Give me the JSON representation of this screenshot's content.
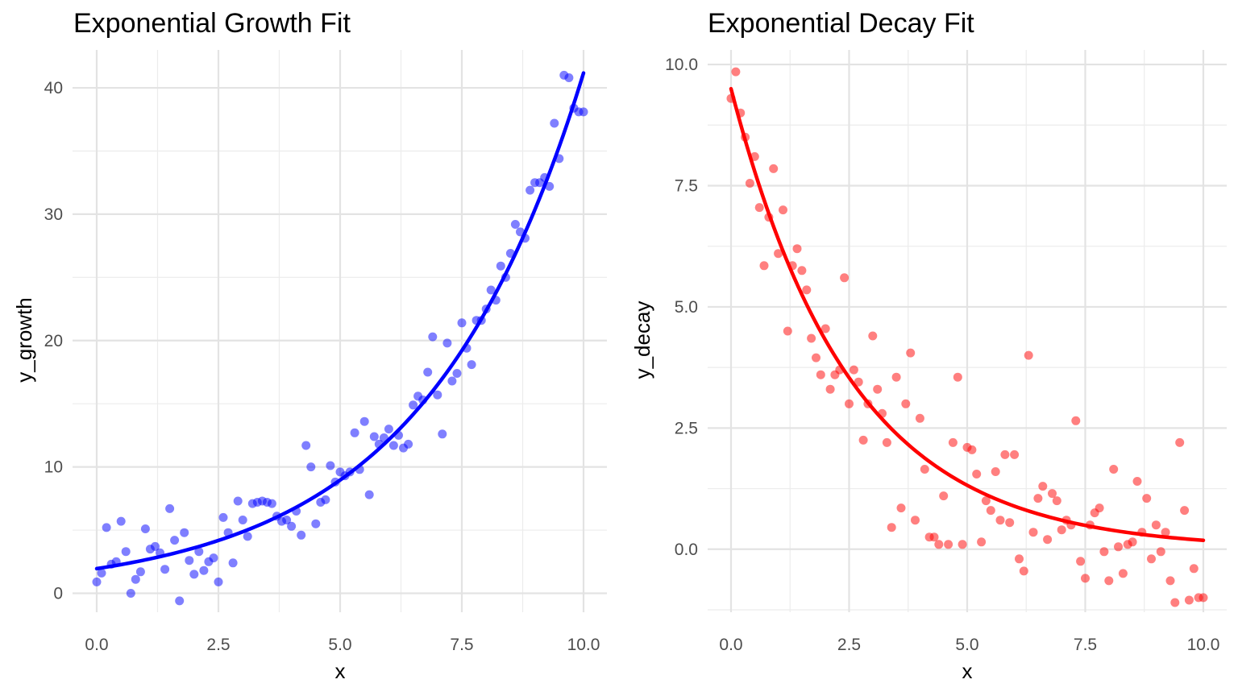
{
  "chart_data": [
    {
      "type": "scatter",
      "title": "Exponential Growth Fit",
      "xlabel": "x",
      "ylabel": "y_growth",
      "xlim": [
        0,
        10
      ],
      "ylim": [
        -1.5,
        43
      ],
      "xticks": [
        0,
        2.5,
        5,
        7.5,
        10
      ],
      "xtick_labels": [
        "0.0",
        "2.5",
        "5.0",
        "7.5",
        "10.0"
      ],
      "yticks": [
        0,
        10,
        20,
        30,
        40
      ],
      "ytick_labels": [
        "0",
        "10",
        "20",
        "30",
        "40"
      ],
      "grid": true,
      "point_color": "#0000FF",
      "line_color": "#0000FF",
      "series": [
        {
          "kind": "points",
          "x": [
            0.0,
            0.1,
            0.2,
            0.3,
            0.4,
            0.5,
            0.6,
            0.7,
            0.8,
            0.9,
            1.0,
            1.1,
            1.2,
            1.3,
            1.4,
            1.5,
            1.6,
            1.7,
            1.8,
            1.9,
            2.0,
            2.1,
            2.2,
            2.3,
            2.4,
            2.5,
            2.6,
            2.7,
            2.8,
            2.9,
            3.0,
            3.1,
            3.2,
            3.3,
            3.4,
            3.5,
            3.6,
            3.7,
            3.8,
            3.9,
            4.0,
            4.1,
            4.2,
            4.3,
            4.4,
            4.5,
            4.6,
            4.7,
            4.8,
            4.9,
            5.0,
            5.1,
            5.2,
            5.3,
            5.4,
            5.5,
            5.6,
            5.7,
            5.8,
            5.9,
            6.0,
            6.1,
            6.2,
            6.3,
            6.4,
            6.5,
            6.6,
            6.7,
            6.8,
            6.9,
            7.0,
            7.1,
            7.2,
            7.3,
            7.4,
            7.5,
            7.6,
            7.7,
            7.8,
            7.9,
            8.0,
            8.1,
            8.2,
            8.3,
            8.4,
            8.5,
            8.6,
            8.7,
            8.8,
            8.9,
            9.0,
            9.1,
            9.2,
            9.3,
            9.4,
            9.5,
            9.6,
            9.7,
            9.8,
            9.9,
            10.0
          ],
          "y": [
            0.9,
            1.6,
            5.2,
            2.3,
            2.5,
            5.7,
            3.3,
            0.0,
            1.1,
            1.7,
            5.1,
            3.5,
            3.7,
            3.2,
            1.9,
            6.7,
            4.2,
            -0.6,
            4.8,
            2.6,
            1.5,
            3.3,
            1.8,
            2.5,
            2.8,
            0.9,
            6.0,
            4.8,
            2.4,
            7.3,
            5.8,
            4.5,
            7.1,
            7.2,
            7.3,
            7.2,
            7.1,
            6.1,
            5.7,
            5.8,
            5.3,
            6.5,
            4.6,
            11.7,
            10.0,
            5.5,
            7.2,
            7.4,
            10.1,
            8.8,
            9.6,
            9.3,
            9.6,
            12.7,
            9.8,
            13.6,
            7.8,
            12.4,
            11.8,
            12.3,
            13.0,
            11.7,
            12.5,
            11.5,
            11.8,
            14.9,
            15.6,
            15.3,
            17.5,
            20.3,
            15.7,
            12.6,
            19.8,
            16.8,
            17.4,
            21.4,
            19.4,
            18.1,
            21.6,
            21.6,
            22.5,
            24.0,
            23.2,
            25.9,
            25.0,
            26.9,
            29.2,
            28.6,
            28.1,
            31.9,
            32.5,
            32.5,
            32.9,
            32.2,
            37.2,
            34.4,
            41.0,
            40.8,
            38.4,
            38.1,
            38.1
          ]
        },
        {
          "kind": "fit",
          "name": "",
          "model": "exponential",
          "a": 1.95,
          "b": 0.305
        }
      ]
    },
    {
      "type": "scatter",
      "title": "Exponential Decay Fit",
      "xlabel": "x",
      "ylabel": "y_decay",
      "xlim": [
        0,
        10
      ],
      "ylim": [
        -1.3,
        10.3
      ],
      "xticks": [
        0,
        2.5,
        5,
        7.5,
        10
      ],
      "xtick_labels": [
        "0.0",
        "2.5",
        "5.0",
        "7.5",
        "10.0"
      ],
      "yticks": [
        0,
        2.5,
        5,
        7.5,
        10
      ],
      "ytick_labels": [
        "0.0",
        "2.5",
        "5.0",
        "7.5",
        "10.0"
      ],
      "grid": true,
      "point_color": "#FF0000",
      "line_color": "#FF0000",
      "series": [
        {
          "kind": "points",
          "x": [
            0.0,
            0.1,
            0.2,
            0.3,
            0.4,
            0.5,
            0.6,
            0.7,
            0.8,
            0.9,
            1.0,
            1.1,
            1.2,
            1.3,
            1.4,
            1.5,
            1.6,
            1.7,
            1.8,
            1.9,
            2.0,
            2.1,
            2.2,
            2.3,
            2.4,
            2.5,
            2.6,
            2.7,
            2.8,
            2.9,
            3.0,
            3.1,
            3.2,
            3.3,
            3.4,
            3.5,
            3.6,
            3.7,
            3.8,
            3.9,
            4.0,
            4.1,
            4.2,
            4.3,
            4.4,
            4.5,
            4.6,
            4.7,
            4.8,
            4.9,
            5.0,
            5.1,
            5.2,
            5.3,
            5.4,
            5.5,
            5.6,
            5.7,
            5.8,
            5.9,
            6.0,
            6.1,
            6.2,
            6.3,
            6.4,
            6.5,
            6.6,
            6.7,
            6.8,
            6.9,
            7.0,
            7.1,
            7.2,
            7.3,
            7.4,
            7.5,
            7.6,
            7.7,
            7.8,
            7.9,
            8.0,
            8.1,
            8.2,
            8.3,
            8.4,
            8.5,
            8.6,
            8.7,
            8.8,
            8.9,
            9.0,
            9.1,
            9.2,
            9.3,
            9.4,
            9.5,
            9.6,
            9.7,
            9.8,
            9.9,
            10.0
          ],
          "y": [
            9.3,
            9.85,
            9.0,
            8.5,
            7.55,
            8.1,
            7.05,
            5.85,
            6.85,
            7.85,
            6.1,
            7.0,
            4.5,
            5.85,
            6.2,
            5.75,
            5.35,
            4.35,
            3.95,
            3.6,
            4.55,
            3.3,
            3.6,
            3.7,
            5.6,
            3.0,
            3.7,
            3.45,
            2.25,
            3.0,
            4.4,
            3.3,
            2.8,
            2.2,
            0.45,
            3.55,
            0.85,
            3.0,
            4.05,
            0.6,
            2.7,
            1.65,
            0.25,
            0.25,
            0.1,
            1.1,
            0.1,
            2.2,
            3.55,
            0.1,
            2.1,
            2.05,
            1.55,
            0.15,
            1.0,
            0.8,
            1.6,
            0.6,
            1.95,
            0.55,
            1.95,
            -0.2,
            -0.45,
            4.0,
            0.35,
            1.05,
            1.3,
            0.2,
            1.15,
            1.0,
            0.4,
            0.6,
            0.5,
            2.65,
            -0.25,
            -0.6,
            0.5,
            0.75,
            0.85,
            -0.05,
            -0.65,
            1.65,
            0.05,
            -0.5,
            0.1,
            0.15,
            1.4,
            0.35,
            1.05,
            -0.2,
            0.5,
            -0.05,
            0.35,
            -0.65,
            -1.1,
            2.2,
            0.8,
            -1.05,
            -0.4,
            -1.0,
            -1.0
          ]
        },
        {
          "kind": "fit",
          "name": "",
          "model": "exponential",
          "a": 9.5,
          "b": -0.395
        }
      ]
    }
  ]
}
